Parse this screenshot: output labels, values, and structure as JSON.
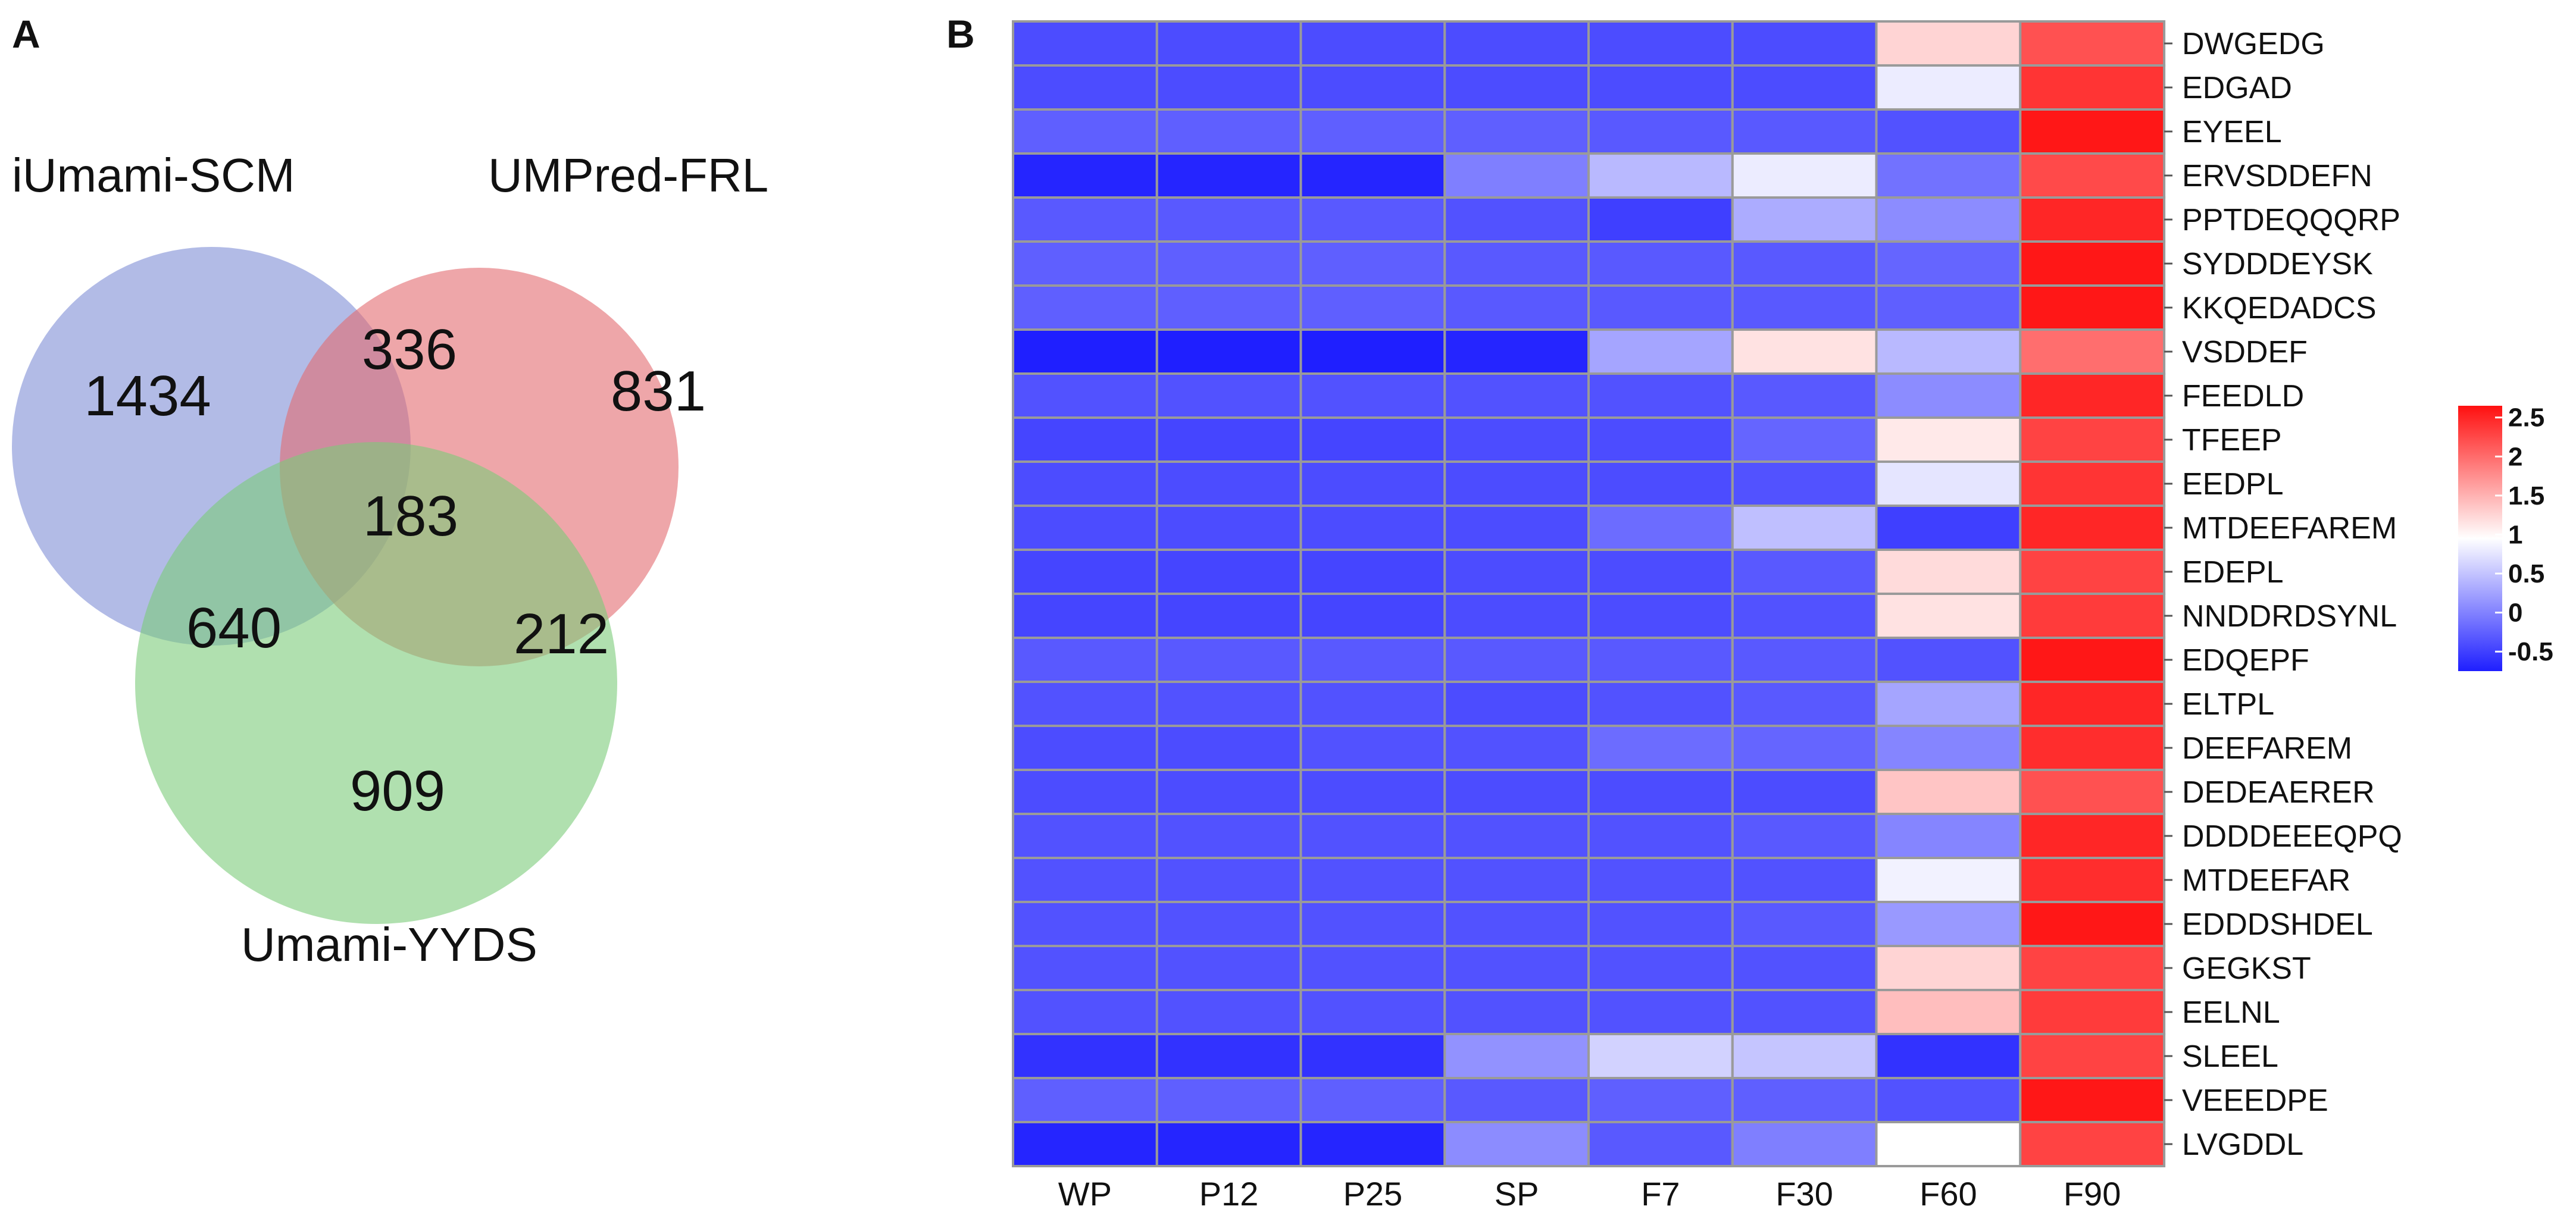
{
  "panels": {
    "a_label": "A",
    "b_label": "B"
  },
  "chart_data": [
    {
      "type": "venn",
      "sets": [
        "iUmami-SCM",
        "UMPred-FRL",
        "Umami-YYDS"
      ],
      "set_colors": [
        "#7F8DD6",
        "#E26A6F",
        "#7CCB79"
      ],
      "regions": {
        "iUmami_only": 1434,
        "UMPred_only": 831,
        "YYDS_only": 909,
        "iUmami_UMPred": 336,
        "iUmami_YYDS": 640,
        "UMPred_YYDS": 212,
        "all_three": 183
      }
    },
    {
      "type": "heatmap",
      "columns": [
        "WP",
        "P12",
        "P25",
        "SP",
        "F7",
        "F30",
        "F60",
        "F90"
      ],
      "rows": [
        "DWGEDG",
        "EDGAD",
        "EYEEL",
        "ERVSDDEFN",
        "PPTDEQQQRP",
        "SYDDDEYSK",
        "KKQEDADCS",
        "VSDDEF",
        "FEEDLD",
        "TFEEP",
        "EEDPL",
        "MTDEEFAREM",
        "EDEPL",
        "NNDDRDSYNL",
        "EDQEPF",
        "ELTPL",
        "DEEFAREM",
        "DEDEAERER",
        "DDDDEEEQPQ",
        "MTDEEFAR",
        "EDDDSHDEL",
        "GEGKST",
        "EELNL",
        "SLEEL",
        "VEEEDPE",
        "LVGDDL"
      ],
      "values": [
        [
          -0.4,
          -0.4,
          -0.4,
          -0.4,
          -0.4,
          -0.4,
          1.3,
          2.2
        ],
        [
          -0.4,
          -0.4,
          -0.4,
          -0.4,
          -0.4,
          -0.4,
          0.85,
          2.4
        ],
        [
          -0.25,
          -0.25,
          -0.25,
          -0.25,
          -0.3,
          -0.3,
          -0.35,
          2.6
        ],
        [
          -0.7,
          -0.7,
          -0.7,
          0.0,
          0.45,
          0.85,
          -0.1,
          2.25
        ],
        [
          -0.3,
          -0.3,
          -0.3,
          -0.35,
          -0.5,
          0.35,
          0.1,
          2.5
        ],
        [
          -0.25,
          -0.25,
          -0.25,
          -0.3,
          -0.3,
          -0.3,
          -0.2,
          2.6
        ],
        [
          -0.25,
          -0.25,
          -0.25,
          -0.3,
          -0.3,
          -0.3,
          -0.25,
          2.6
        ],
        [
          -0.75,
          -0.75,
          -0.75,
          -0.7,
          0.3,
          1.2,
          0.45,
          2.0
        ],
        [
          -0.35,
          -0.35,
          -0.35,
          -0.35,
          -0.35,
          -0.3,
          0.1,
          2.5
        ],
        [
          -0.45,
          -0.45,
          -0.45,
          -0.4,
          -0.4,
          -0.2,
          1.15,
          2.3
        ],
        [
          -0.4,
          -0.4,
          -0.4,
          -0.4,
          -0.4,
          -0.35,
          0.8,
          2.4
        ],
        [
          -0.4,
          -0.4,
          -0.4,
          -0.4,
          -0.15,
          0.5,
          -0.5,
          2.5
        ],
        [
          -0.45,
          -0.45,
          -0.45,
          -0.4,
          -0.4,
          -0.3,
          1.25,
          2.3
        ],
        [
          -0.45,
          -0.45,
          -0.45,
          -0.4,
          -0.4,
          -0.35,
          1.2,
          2.35
        ],
        [
          -0.3,
          -0.3,
          -0.3,
          -0.3,
          -0.3,
          -0.3,
          -0.35,
          2.6
        ],
        [
          -0.35,
          -0.35,
          -0.35,
          -0.4,
          -0.35,
          -0.3,
          0.3,
          2.5
        ],
        [
          -0.4,
          -0.4,
          -0.35,
          -0.35,
          -0.15,
          -0.2,
          0.05,
          2.45
        ],
        [
          -0.4,
          -0.4,
          -0.4,
          -0.4,
          -0.4,
          -0.4,
          1.4,
          2.2
        ],
        [
          -0.35,
          -0.35,
          -0.35,
          -0.35,
          -0.35,
          -0.3,
          0.05,
          2.5
        ],
        [
          -0.35,
          -0.35,
          -0.35,
          -0.35,
          -0.35,
          -0.35,
          0.9,
          2.45
        ],
        [
          -0.35,
          -0.35,
          -0.35,
          -0.35,
          -0.35,
          -0.3,
          0.2,
          2.6
        ],
        [
          -0.35,
          -0.35,
          -0.35,
          -0.35,
          -0.35,
          -0.35,
          1.3,
          2.3
        ],
        [
          -0.35,
          -0.35,
          -0.35,
          -0.35,
          -0.35,
          -0.35,
          1.45,
          2.35
        ],
        [
          -0.6,
          -0.6,
          -0.6,
          0.15,
          0.65,
          0.55,
          -0.6,
          2.3
        ],
        [
          -0.25,
          -0.25,
          -0.25,
          -0.3,
          -0.25,
          -0.25,
          -0.35,
          2.6
        ],
        [
          -0.7,
          -0.7,
          -0.7,
          0.1,
          -0.3,
          0.0,
          1.0,
          2.3
        ]
      ],
      "color_scale": {
        "low": "#1F1FFF",
        "mid": "#FFFFFF",
        "high": "#FF1010",
        "min": -0.75,
        "mid_value": 1,
        "max": 2.65
      },
      "legend_ticks": [
        "2.5",
        "2",
        "1.5",
        "1",
        "0.5",
        "0",
        "-0.5"
      ],
      "legend_tick_values": [
        2.5,
        2,
        1.5,
        1,
        0.5,
        0,
        -0.5
      ]
    }
  ]
}
